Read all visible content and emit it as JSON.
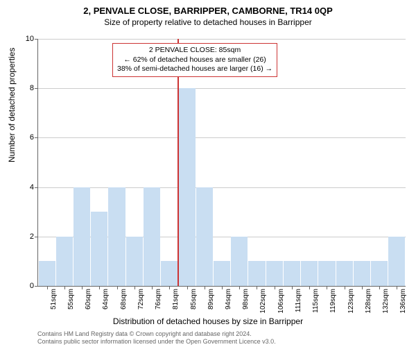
{
  "header": {
    "title": "2, PENVALE CLOSE, BARRIPPER, CAMBORNE, TR14 0QP",
    "subtitle": "Size of property relative to detached houses in Barripper"
  },
  "chart": {
    "type": "bar",
    "ylabel": "Number of detached properties",
    "xlabel": "Distribution of detached houses by size in Barripper",
    "ylim": [
      0,
      10
    ],
    "ytick_step": 2,
    "grid_color": "#cccccc",
    "background_color": "#ffffff",
    "bar_color": "#c9def2",
    "axis_color": "#666666",
    "highlight_color": "#cc3333",
    "title_fontsize": 13,
    "subtitle_fontsize": 12,
    "label_fontsize": 12,
    "tick_fontsize": 11,
    "categories": [
      "51sqm",
      "55sqm",
      "60sqm",
      "64sqm",
      "68sqm",
      "72sqm",
      "76sqm",
      "81sqm",
      "85sqm",
      "89sqm",
      "94sqm",
      "98sqm",
      "102sqm",
      "106sqm",
      "111sqm",
      "115sqm",
      "119sqm",
      "123sqm",
      "128sqm",
      "132sqm",
      "136sqm"
    ],
    "values": [
      1,
      2,
      4,
      3,
      4,
      2,
      4,
      1,
      8,
      4,
      1,
      2,
      1,
      1,
      1,
      1,
      1,
      1,
      1,
      1,
      2
    ],
    "highlight_index": 8,
    "bar_width": 0.96
  },
  "callout": {
    "line1": "2 PENVALE CLOSE: 85sqm",
    "line2": "← 62% of detached houses are smaller (26)",
    "line3": "38% of semi-detached houses are larger (16) →"
  },
  "footer": {
    "line1": "Contains HM Land Registry data © Crown copyright and database right 2024.",
    "line2": "Contains public sector information licensed under the Open Government Licence v3.0."
  }
}
